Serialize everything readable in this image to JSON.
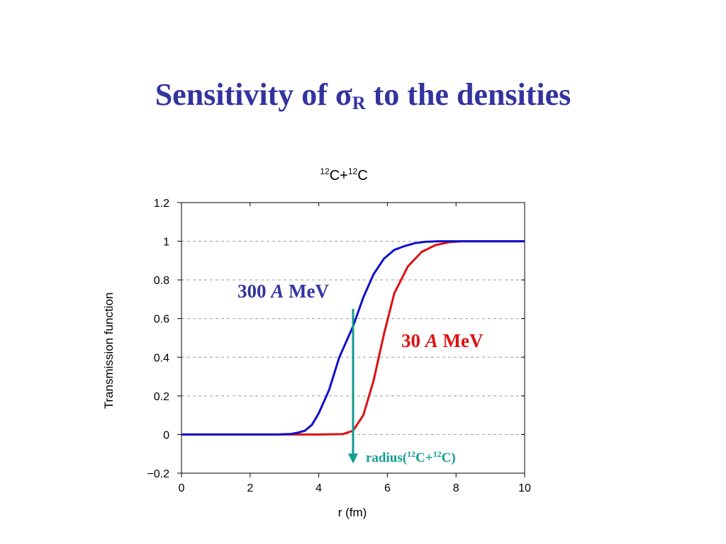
{
  "slide": {
    "title_prefix": "Sensitivity of ",
    "title_sigma": "σ",
    "title_subscript": "R",
    "title_suffix": " to the densities"
  },
  "chart_data": {
    "type": "line",
    "title": {
      "mass1": "12",
      "element1": "C",
      "plus": "+",
      "mass2": "12",
      "element2": "C"
    },
    "xlabel": "r (fm)",
    "ylabel": "Transmission function",
    "xlim": [
      0,
      10
    ],
    "ylim": [
      -0.2,
      1.2
    ],
    "x_ticks": [
      "0",
      "2",
      "4",
      "6",
      "8",
      "10"
    ],
    "y_ticks": [
      "−0.2",
      "0",
      "0.2",
      "0.4",
      "0.6",
      "0.8",
      "1",
      "1.2"
    ],
    "grid": "horizontal dashed at y ticks",
    "series": [
      {
        "color": "#1010cc",
        "points": [
          [
            0,
            0
          ],
          [
            2,
            0
          ],
          [
            2.8,
            0
          ],
          [
            3.2,
            0.003
          ],
          [
            3.4,
            0.01
          ],
          [
            3.6,
            0.02
          ],
          [
            3.8,
            0.05
          ],
          [
            4.0,
            0.11
          ],
          [
            4.3,
            0.23
          ],
          [
            4.6,
            0.4
          ],
          [
            5.0,
            0.56
          ],
          [
            5.3,
            0.71
          ],
          [
            5.6,
            0.83
          ],
          [
            5.9,
            0.91
          ],
          [
            6.2,
            0.955
          ],
          [
            6.5,
            0.975
          ],
          [
            6.8,
            0.99
          ],
          [
            7.1,
            0.997
          ],
          [
            7.5,
            1.0
          ],
          [
            10,
            1.0
          ]
        ]
      },
      {
        "color": "#dd1111",
        "points": [
          [
            0,
            0
          ],
          [
            4,
            0
          ],
          [
            4.7,
            0.002
          ],
          [
            5.0,
            0.02
          ],
          [
            5.3,
            0.1
          ],
          [
            5.6,
            0.28
          ],
          [
            5.9,
            0.52
          ],
          [
            6.2,
            0.73
          ],
          [
            6.6,
            0.87
          ],
          [
            7.0,
            0.945
          ],
          [
            7.4,
            0.98
          ],
          [
            7.8,
            0.995
          ],
          [
            8.2,
            1.0
          ],
          [
            10,
            1.0
          ]
        ]
      }
    ],
    "annotations": {
      "label_300_value": "300",
      "label_300_A": "A",
      "label_300_unit": "MeV",
      "label_30_value": "30",
      "label_30_A": "A",
      "label_30_unit": "MeV",
      "radius_prefix": "radius(",
      "radius_mass1": "12",
      "radius_mid": "C+",
      "radius_mass2": "12",
      "radius_suffix": "C)",
      "radius_x": 5.0,
      "radius_arrow_top_y": 0.65,
      "radius_arrow_bottom_y": -0.15,
      "radius_arrow_color": "#129c8f"
    }
  }
}
